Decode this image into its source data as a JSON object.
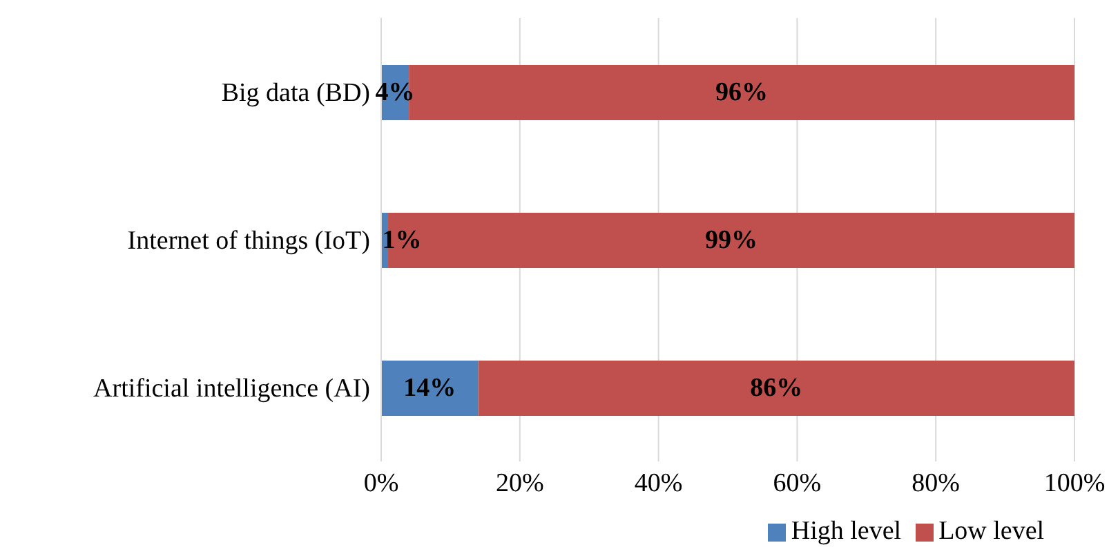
{
  "chart_data": {
    "type": "bar",
    "orientation": "horizontal",
    "stacked": true,
    "categories": [
      "Big data (BD)",
      "Internet of things (IoT)",
      "Artificial intelligence (AI)"
    ],
    "series": [
      {
        "name": "High level",
        "color": "#4f81bd",
        "values": [
          4,
          1,
          14
        ],
        "value_labels": [
          "4%",
          "1%",
          "14%"
        ]
      },
      {
        "name": "Low level",
        "color": "#c0504d",
        "values": [
          96,
          99,
          86
        ],
        "value_labels": [
          "96%",
          "99%",
          "86%"
        ]
      }
    ],
    "xlim": [
      0,
      100
    ],
    "xticks": [
      {
        "value": 0,
        "label": "0%"
      },
      {
        "value": 20,
        "label": "20%"
      },
      {
        "value": 40,
        "label": "40%"
      },
      {
        "value": 60,
        "label": "60%"
      },
      {
        "value": 80,
        "label": "80%"
      },
      {
        "value": 100,
        "label": "100%"
      }
    ],
    "grid": "x",
    "legend": "bottom"
  }
}
